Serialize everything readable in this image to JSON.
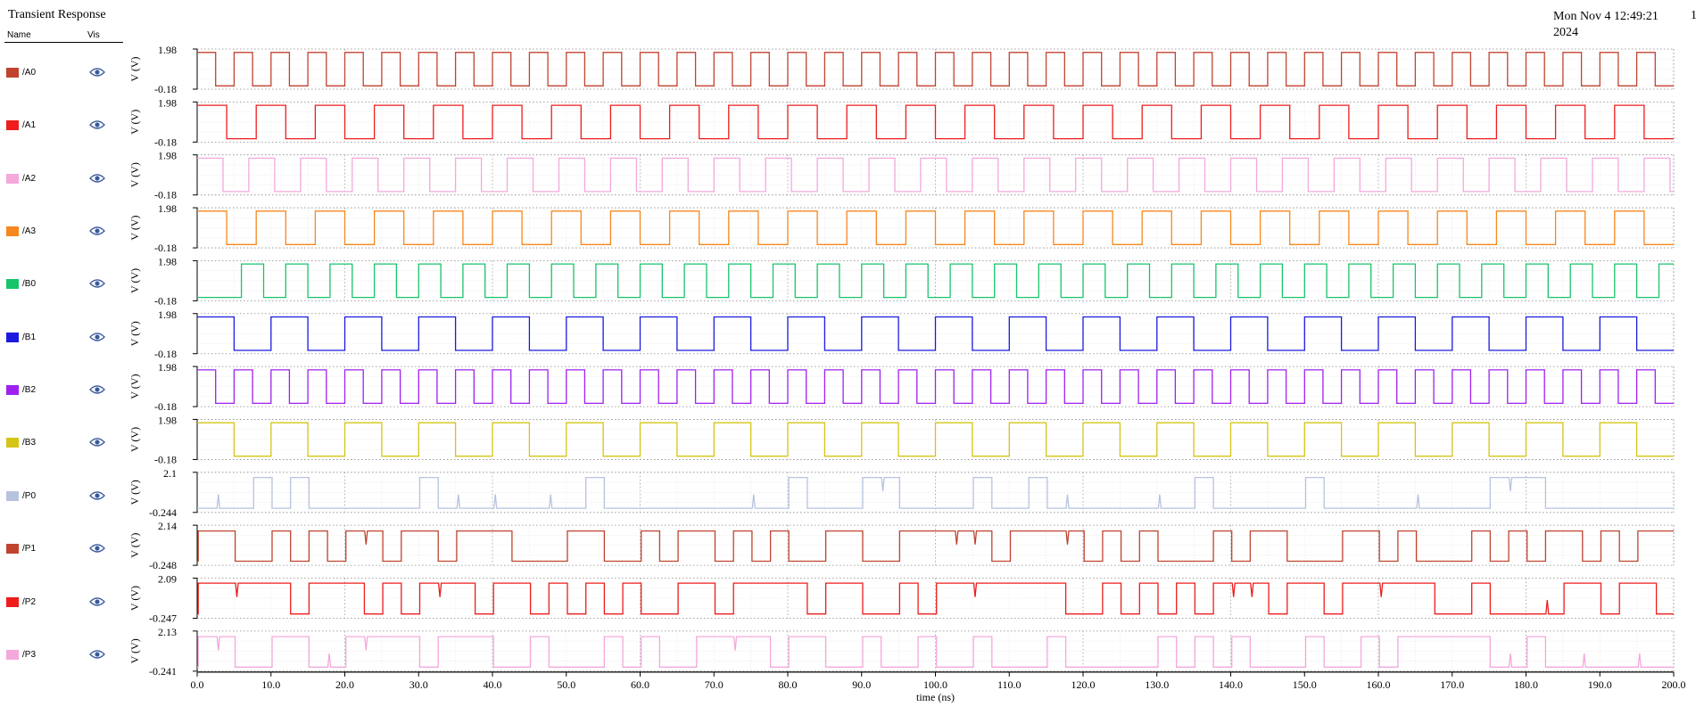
{
  "window": {
    "title": "Transient Response",
    "date": "Mon Nov 4 12:49:21 2024",
    "page_number": "1",
    "legend_header": {
      "name": "Name",
      "vis": "Vis"
    }
  },
  "icons": {
    "visibility": "eye-icon"
  },
  "chart_data": {
    "type": "line",
    "xlabel": "time (ns)",
    "xlim": [
      0,
      200
    ],
    "x_ticks": [
      "0.0",
      "10.0",
      "20.0",
      "30.0",
      "40.0",
      "50.0",
      "60.0",
      "70.0",
      "80.0",
      "90.0",
      "100.0",
      "110.0",
      "120.0",
      "130.0",
      "140.0",
      "150.0",
      "160.0",
      "170.0",
      "180.0",
      "190.0",
      "200.0"
    ],
    "grid": true,
    "legend_placement": "left",
    "series": [
      {
        "name": "/A0",
        "color": "#c0432f",
        "ylabel": "V (V)",
        "ymax_label": "1.98",
        "ymin_label": "-0.18",
        "ylim": [
          -0.18,
          1.98
        ],
        "high": 1.8,
        "low": 0.0,
        "kind": "clock",
        "period": 5,
        "phase": 0
      },
      {
        "name": "/A1",
        "color": "#ee1c1c",
        "ylabel": "V (V)",
        "ymax_label": "1.98",
        "ymin_label": "-0.18",
        "ylim": [
          -0.18,
          1.98
        ],
        "high": 1.8,
        "low": 0.0,
        "kind": "clock",
        "period": 8,
        "phase": 0
      },
      {
        "name": "/A2",
        "color": "#f4a8dc",
        "ylabel": "V (V)",
        "ymax_label": "1.98",
        "ymin_label": "-0.18",
        "ylim": [
          -0.18,
          1.98
        ],
        "high": 1.8,
        "low": 0.0,
        "kind": "clock",
        "period": 7,
        "phase": 0
      },
      {
        "name": "/A3",
        "color": "#f7871f",
        "ylabel": "V (V)",
        "ymax_label": "1.98",
        "ymin_label": "-0.18",
        "ylim": [
          -0.18,
          1.98
        ],
        "high": 1.8,
        "low": 0.0,
        "kind": "clock",
        "period": 8,
        "phase": 0
      },
      {
        "name": "/B0",
        "color": "#18c46a",
        "ylabel": "V (V)",
        "ymax_label": "1.98",
        "ymin_label": "-0.18",
        "ylim": [
          -0.18,
          1.98
        ],
        "high": 1.8,
        "low": 0.0,
        "kind": "clock",
        "period": 6,
        "phase": 3
      },
      {
        "name": "/B1",
        "color": "#1a1adf",
        "ylabel": "V (V)",
        "ymax_label": "1.98",
        "ymin_label": "-0.18",
        "ylim": [
          -0.18,
          1.98
        ],
        "high": 1.8,
        "low": 0.0,
        "kind": "clock",
        "period": 10,
        "phase": 0
      },
      {
        "name": "/B2",
        "color": "#a020f0",
        "ylabel": "V (V)",
        "ymax_label": "1.98",
        "ymin_label": "-0.18",
        "ylim": [
          -0.18,
          1.98
        ],
        "high": 1.8,
        "low": 0.0,
        "kind": "clock",
        "period": 5,
        "phase": 0
      },
      {
        "name": "/B3",
        "color": "#d4c514",
        "ylabel": "V (V)",
        "ymax_label": "1.98",
        "ymin_label": "-0.18",
        "ylim": [
          -0.18,
          1.98
        ],
        "high": 1.8,
        "low": 0.0,
        "kind": "clock",
        "period": 10,
        "phase": 0
      },
      {
        "name": "/P0",
        "color": "#b7c3de",
        "ylabel": "V (V)",
        "ymax_label": "2.1",
        "ymin_label": "-0.244",
        "ylim": [
          -0.244,
          2.1
        ],
        "high": 1.8,
        "low": 0.0,
        "kind": "logic",
        "duty": 0.2,
        "seed": 11
      },
      {
        "name": "/P1",
        "color": "#c0432f",
        "ylabel": "V (V)",
        "ymax_label": "2.14",
        "ymin_label": "-0.248",
        "ylim": [
          -0.248,
          2.14
        ],
        "high": 1.8,
        "low": 0.0,
        "kind": "logic",
        "duty": 0.5,
        "seed": 23
      },
      {
        "name": "/P2",
        "color": "#ee1c1c",
        "ylabel": "V (V)",
        "ymax_label": "2.09",
        "ymin_label": "-0.247",
        "ylim": [
          -0.247,
          2.09
        ],
        "high": 1.8,
        "low": 0.0,
        "kind": "logic",
        "duty": 0.65,
        "seed": 37
      },
      {
        "name": "/P3",
        "color": "#f4a8dc",
        "ylabel": "V (V)",
        "ymax_label": "2.13",
        "ymin_label": "-0.241",
        "ylim": [
          -0.241,
          2.13
        ],
        "high": 1.8,
        "low": 0.0,
        "kind": "logic",
        "duty": 0.4,
        "seed": 53
      }
    ]
  }
}
